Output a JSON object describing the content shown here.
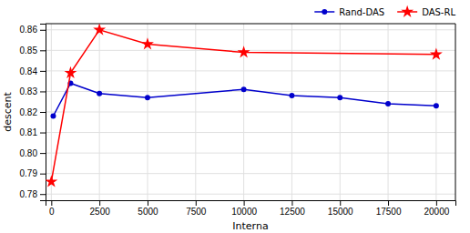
{
  "chart_data": {
    "type": "line",
    "xlabel": "Interna",
    "ylabel": "descent",
    "xlim": [
      -300,
      21000
    ],
    "ylim": [
      0.777,
      0.863
    ],
    "xticks": [
      0,
      2500,
      5000,
      7500,
      10000,
      12500,
      15000,
      17500,
      20000
    ],
    "yticks": [
      0.78,
      0.79,
      {
        "value": 0.8,
        "label": "0.80"
      },
      0.81,
      0.82,
      0.83,
      0.84,
      0.85,
      0.86
    ],
    "grid": true,
    "legend": "upper right",
    "series": [
      {
        "name": "Rand-DAS",
        "color": "#0000cc",
        "marker": "circle",
        "x": [
          100,
          1000,
          2500,
          5000,
          10000,
          12500,
          15000,
          17500,
          20000
        ],
        "values": [
          0.818,
          0.834,
          0.829,
          0.827,
          0.831,
          0.828,
          0.827,
          0.824,
          0.823
        ]
      },
      {
        "name": "DAS-RL",
        "color": "#ff0000",
        "marker": "star",
        "x": [
          0,
          1000,
          2500,
          5000,
          10000,
          20000
        ],
        "values": [
          0.786,
          0.839,
          0.86,
          0.853,
          0.849,
          0.848
        ]
      }
    ]
  }
}
